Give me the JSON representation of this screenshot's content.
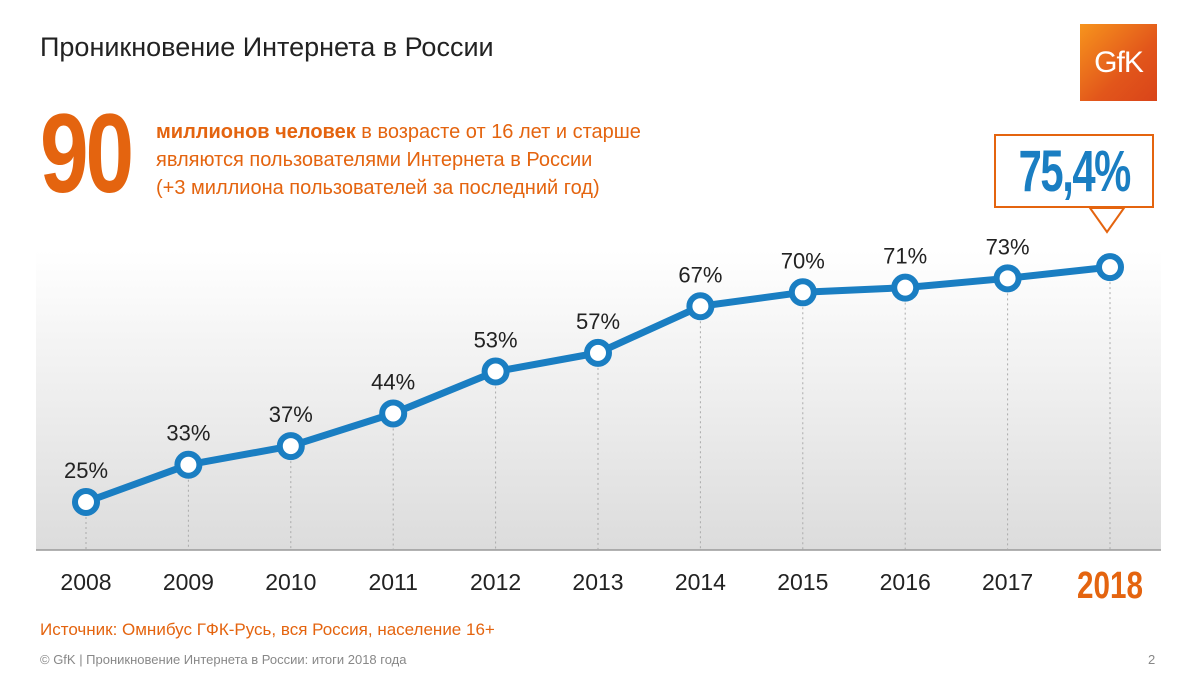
{
  "header": {
    "title": "Проникновение Интернета в России",
    "logo_text": "GfK"
  },
  "highlight": {
    "big_number": "90",
    "line1_bold": "миллионов человек",
    "line1_rest": " в возрасте от 16 лет и старше",
    "line2": "являются пользователями Интернета в России",
    "line3": "(+3 миллиона пользователей за последний год)"
  },
  "callout": {
    "value": "75,4%"
  },
  "colors": {
    "accent": "#e4640f",
    "line": "#1a7ec2"
  },
  "chart_data": {
    "type": "line",
    "categories": [
      "2008",
      "2009",
      "2010",
      "2011",
      "2012",
      "2013",
      "2014",
      "2015",
      "2016",
      "2017",
      "2018"
    ],
    "values": [
      25,
      33,
      37,
      44,
      53,
      57,
      67,
      70,
      71,
      73,
      75.4
    ],
    "labels": [
      "25%",
      "33%",
      "37%",
      "44%",
      "53%",
      "57%",
      "67%",
      "70%",
      "71%",
      "73%",
      ""
    ],
    "highlight_category": "2018"
  },
  "source": "Источник: Омнибус ГФК-Русь, вся Россия, население 16+",
  "footer": {
    "text": "© GfK | Проникновение Интернета в России: итоги 2018 года",
    "page": "2"
  }
}
